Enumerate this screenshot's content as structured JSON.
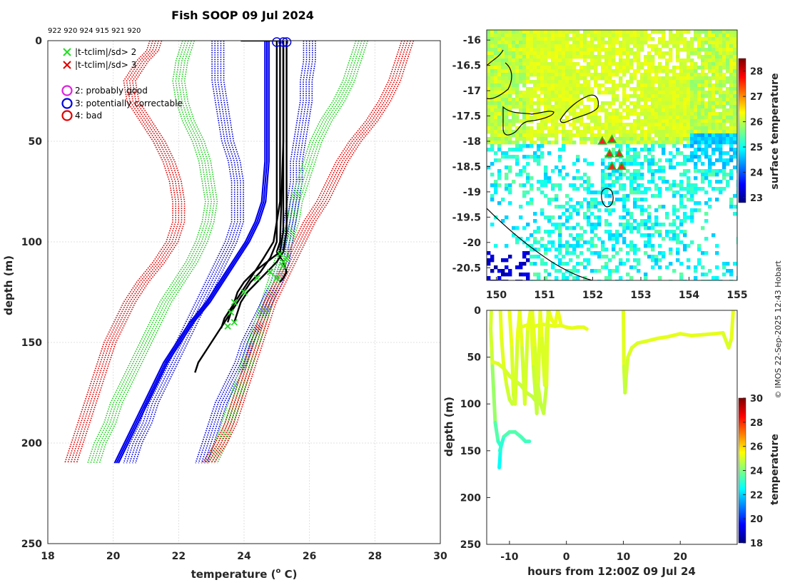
{
  "chart_data": [
    {
      "id": "profile",
      "type": "line",
      "title": "Fish SOOP 09 Jul 2024",
      "drop_ids_label": "922 920 924 915 921 920",
      "xlabel": "temperature (°C)",
      "xlabel_main": "temperature (",
      "xlabel_sup": "o",
      "xlabel_tail": " C)",
      "ylabel": "depth (m)",
      "xlim": [
        18,
        30
      ],
      "ylim": [
        250,
        0
      ],
      "xticks": [
        "18",
        "20",
        "22",
        "24",
        "26",
        "28",
        "30"
      ],
      "yticks": [
        "0",
        "50",
        "100",
        "150",
        "200",
        "250"
      ],
      "grid": true,
      "legend": [
        {
          "marker": "x",
          "color": "#22dd22",
          "label": "|t-tclim|/sd> 2"
        },
        {
          "marker": "x",
          "color": "#e00000",
          "label": "|t-tclim|/sd> 3"
        },
        {
          "marker": "o",
          "color": "#dd22dd",
          "label": "2: probably good"
        },
        {
          "marker": "o",
          "color": "#0000e0",
          "label": "3: potentially correctable"
        },
        {
          "marker": "o",
          "color": "#e00000",
          "label": "4: bad"
        }
      ],
      "clim_depth": [
        0,
        5,
        10,
        20,
        30,
        40,
        50,
        60,
        70,
        80,
        90,
        100,
        110,
        120,
        130,
        140,
        150,
        160,
        170,
        180,
        190,
        200,
        210
      ],
      "clim_series": [
        {
          "name": "clim-3sd-low",
          "color": "#e00000",
          "values": [
            21.3,
            21.2,
            20.9,
            20.5,
            20.6,
            21.0,
            21.4,
            21.7,
            21.9,
            22.0,
            22.0,
            21.8,
            21.4,
            20.9,
            20.5,
            20.2,
            19.9,
            19.7,
            19.5,
            19.3,
            19.1,
            18.9,
            18.7
          ]
        },
        {
          "name": "clim-2sd-low",
          "color": "#22cc22",
          "values": [
            22.3,
            22.2,
            22.1,
            22.0,
            22.1,
            22.3,
            22.6,
            22.8,
            22.9,
            23.0,
            22.9,
            22.7,
            22.4,
            22.0,
            21.6,
            21.3,
            21.0,
            20.7,
            20.4,
            20.1,
            19.9,
            19.6,
            19.4
          ]
        },
        {
          "name": "clim-1sd-low",
          "color": "#0000dd",
          "values": [
            23.2,
            23.2,
            23.2,
            23.2,
            23.3,
            23.4,
            23.5,
            23.7,
            23.8,
            23.8,
            23.8,
            23.6,
            23.3,
            23.0,
            22.7,
            22.4,
            22.1,
            21.8,
            21.5,
            21.2,
            21.0,
            20.7,
            20.5
          ]
        },
        {
          "name": "clim-1sd-high",
          "color": "#0000dd",
          "values": [
            26.0,
            26.0,
            26.0,
            25.9,
            25.9,
            25.8,
            25.7,
            25.6,
            25.6,
            25.5,
            25.4,
            25.3,
            25.2,
            25.0,
            24.7,
            24.4,
            24.1,
            23.9,
            23.6,
            23.3,
            23.1,
            22.9,
            22.7
          ]
        },
        {
          "name": "clim-2sd-high",
          "color": "#22cc22",
          "values": [
            27.6,
            27.5,
            27.4,
            27.2,
            26.9,
            26.5,
            26.2,
            26.0,
            25.8,
            25.6,
            25.5,
            25.3,
            25.1,
            24.9,
            24.7,
            24.5,
            24.3,
            24.1,
            23.9,
            23.7,
            23.5,
            23.3,
            23.0
          ]
        },
        {
          "name": "clim-3sd-high",
          "color": "#e00000",
          "values": [
            29.0,
            28.9,
            28.8,
            28.6,
            28.3,
            27.9,
            27.4,
            27.0,
            26.7,
            26.4,
            26.0,
            25.7,
            25.4,
            25.1,
            24.8,
            24.6,
            24.4,
            24.2,
            24.0,
            23.8,
            23.6,
            23.3,
            22.9
          ]
        }
      ],
      "mean_series": {
        "name": "clim-mean",
        "color": "#0000ee",
        "depth": [
          0,
          20,
          40,
          60,
          80,
          90,
          100,
          110,
          120,
          130,
          140,
          150,
          160,
          170,
          180,
          190,
          200,
          210
        ],
        "values": [
          24.7,
          24.7,
          24.7,
          24.7,
          24.6,
          24.4,
          24.1,
          23.7,
          23.3,
          22.9,
          22.4,
          22.0,
          21.6,
          21.3,
          21.0,
          20.7,
          20.4,
          20.1
        ]
      },
      "profiles": [
        {
          "name": "drop-1",
          "depth": [
            0,
            40,
            80,
            90,
            100,
            108,
            115,
            120,
            125,
            130,
            135,
            140,
            145,
            150,
            155,
            160,
            165
          ],
          "values": [
            25.1,
            25.1,
            25.1,
            25.0,
            25.0,
            24.8,
            24.5,
            24.2,
            24.0,
            23.8,
            23.6,
            23.4,
            23.2,
            23.0,
            22.8,
            22.6,
            22.5
          ]
        },
        {
          "name": "drop-2",
          "depth": [
            0,
            40,
            80,
            95,
            105,
            110,
            115,
            120,
            125,
            130,
            135,
            140
          ],
          "values": [
            25.2,
            25.2,
            25.2,
            25.2,
            25.1,
            24.7,
            24.3,
            24.0,
            23.8,
            23.7,
            23.6,
            23.5
          ]
        },
        {
          "name": "drop-3",
          "depth": [
            0,
            50,
            90,
            100,
            108,
            113,
            118,
            123,
            128,
            133,
            138,
            143
          ],
          "values": [
            25.0,
            25.0,
            25.0,
            24.9,
            24.6,
            24.4,
            24.2,
            24.0,
            23.8,
            23.6,
            23.4,
            23.3
          ]
        },
        {
          "name": "drop-4",
          "depth": [
            0,
            60,
            95,
            105,
            110,
            115,
            120,
            125,
            130,
            135,
            140
          ],
          "values": [
            25.3,
            25.3,
            25.3,
            25.2,
            25.0,
            24.7,
            24.4,
            24.1,
            23.9,
            23.8,
            23.7
          ]
        },
        {
          "name": "drop-5",
          "depth": [
            0,
            50,
            100,
            105,
            110,
            115,
            118,
            120
          ],
          "values": [
            25.2,
            25.2,
            25.1,
            25.0,
            25.2,
            25.3,
            25.2,
            25.1
          ]
        },
        {
          "name": "drop-6",
          "depth": [
            0,
            0,
            0
          ],
          "values": [
            23.9,
            24.6,
            25.1
          ]
        }
      ],
      "flag_points": {
        "green_x": [
          [
            25.1,
            106
          ],
          [
            25.3,
            108
          ],
          [
            25.2,
            112
          ],
          [
            24.8,
            115
          ],
          [
            24.4,
            118
          ],
          [
            24.0,
            125
          ],
          [
            23.7,
            130
          ],
          [
            23.6,
            135
          ],
          [
            23.7,
            140
          ],
          [
            23.5,
            142
          ],
          [
            25.2,
            110
          ],
          [
            25.0,
            118
          ]
        ],
        "blue_o": [
          [
            25.0,
            0
          ],
          [
            25.2,
            0
          ],
          [
            25.3,
            0
          ]
        ]
      }
    },
    {
      "id": "map",
      "type": "heatmap",
      "colorbar_label": "surface temperature",
      "xlim": [
        149.8,
        155
      ],
      "ylim": [
        -20.75,
        -15.8
      ],
      "xticks": [
        "150",
        "151",
        "152",
        "153",
        "154",
        "155"
      ],
      "yticks": [
        "-16",
        "-16.5",
        "-17",
        "-17.5",
        "-18",
        "-18.5",
        "-19",
        "-19.5",
        "-20",
        "-20.5"
      ],
      "crange": [
        22.8,
        28.5
      ],
      "cticks": [
        "23",
        "24",
        "25",
        "26",
        "27",
        "28"
      ],
      "drops": [
        [
          152.2,
          -18.0
        ],
        [
          152.4,
          -17.97
        ],
        [
          152.35,
          -18.25
        ],
        [
          152.55,
          -18.25
        ],
        [
          152.4,
          -18.5
        ],
        [
          152.6,
          -18.5
        ]
      ]
    },
    {
      "id": "timeseries",
      "type": "scatter",
      "xlabel": "hours from 12:00Z 09 Jul 24",
      "ylabel": "depth (m)",
      "colorbar_label": "temperature",
      "xlim": [
        -14,
        30
      ],
      "ylim": [
        250,
        0
      ],
      "xticks": [
        "-10",
        "0",
        "10",
        "20"
      ],
      "yticks": [
        "0",
        "50",
        "100",
        "150",
        "200",
        "250"
      ],
      "crange": [
        18,
        30
      ],
      "cticks": [
        "18",
        "20",
        "22",
        "24",
        "26",
        "28",
        "30"
      ],
      "tracks": [
        {
          "name": "track-1",
          "t": [
            -13.2,
            -13.3,
            -13.1,
            -13.0,
            -12.5,
            -12.0,
            -11.5,
            -11.6,
            -11.7,
            -11.8
          ],
          "depth": [
            0,
            20,
            45,
            60,
            120,
            140,
            145,
            150,
            160,
            168
          ],
          "temp": [
            25.0,
            25.0,
            24.9,
            24.8,
            23.8,
            23.2,
            23.0,
            22.8,
            22.6,
            22.5
          ]
        },
        {
          "name": "track-2",
          "t": [
            -11.7,
            -11.0,
            -10.0,
            -9.0,
            -8.0,
            -7.2,
            -6.5
          ],
          "depth": [
            150,
            135,
            130,
            130,
            135,
            140,
            140
          ],
          "temp": [
            22.7,
            23.3,
            23.5,
            23.5,
            23.4,
            23.3,
            23.2
          ]
        },
        {
          "name": "track-3",
          "t": [
            -13.0,
            -12.0,
            -11.0,
            -10.0,
            -9.0,
            -8.0,
            -7.0,
            -6.0,
            -5.5,
            -4.6
          ],
          "depth": [
            55,
            57,
            62,
            70,
            75,
            80,
            88,
            92,
            96,
            100
          ],
          "temp": [
            25.2,
            25.1,
            25.0,
            25.0,
            24.9,
            24.9,
            24.8,
            24.8,
            24.7,
            24.7
          ]
        },
        {
          "name": "track-4",
          "t": [
            -11.6,
            -11.4,
            -11.0,
            -10.5,
            -10.0,
            -9.5,
            -9.0,
            -8.5,
            -8.0,
            -7.5,
            -7.0,
            -6.5,
            -6.0,
            -5.5,
            -5.0,
            -4.5,
            -4.0,
            -3.0,
            -2.0,
            -1.0,
            0.0,
            1.0,
            2.0,
            3.0,
            3.6
          ],
          "depth": [
            0,
            30,
            60,
            80,
            95,
            100,
            95,
            20,
            18,
            17,
            16,
            15,
            16,
            17,
            16,
            16,
            15,
            16,
            17,
            16,
            18,
            19,
            18,
            18,
            20
          ],
          "temp": [
            25.2,
            25.2,
            25.1,
            25.0,
            24.9,
            24.8,
            24.9,
            25.2,
            25.2,
            25.2,
            25.2,
            25.2,
            25.2,
            25.2,
            25.2,
            25.2,
            25.2,
            25.2,
            25.2,
            25.2,
            25.2,
            25.2,
            25.2,
            25.2,
            25.2
          ]
        },
        {
          "name": "track-5",
          "t": [
            -10.0,
            -9.6,
            -9.3,
            -9.0,
            -8.6,
            -8.2,
            -7.8,
            -7.3,
            -6.8,
            -6.3,
            -5.8,
            -5.2,
            -4.9,
            -4.6,
            -4.3,
            -3.8,
            -3.5,
            -3.1,
            -2.6,
            -2.0,
            -1.5,
            -1.0
          ],
          "depth": [
            0,
            40,
            90,
            100,
            30,
            0,
            40,
            100,
            20,
            0,
            60,
            110,
            70,
            0,
            30,
            80,
            20,
            0,
            10,
            15,
            0,
            14
          ],
          "temp": [
            25.3,
            25.2,
            24.9,
            24.8,
            25.2,
            25.3,
            25.1,
            24.8,
            25.2,
            25.3,
            25.0,
            24.7,
            24.9,
            25.3,
            25.2,
            24.9,
            25.2,
            25.3,
            25.3,
            25.2,
            25.3,
            25.2
          ]
        },
        {
          "name": "track-6",
          "t": [
            -6.0,
            -5.5,
            -5.0,
            -4.5,
            -4.0,
            -3.5,
            -3.2
          ],
          "depth": [
            0,
            40,
            80,
            100,
            110,
            80,
            0
          ],
          "temp": [
            25.3,
            25.1,
            24.9,
            24.8,
            24.7,
            24.9,
            25.3
          ]
        },
        {
          "name": "track-7",
          "t": [
            10.0,
            10.1,
            10.3,
            10.5,
            10.8,
            11.5,
            12.5,
            14.0,
            16.0,
            18.0,
            20.0,
            22.0,
            24.0,
            26.0,
            27.5,
            28.5,
            29.0,
            29.3
          ],
          "depth": [
            0,
            60,
            88,
            70,
            50,
            40,
            35,
            33,
            30,
            28,
            25,
            27,
            26,
            25,
            24,
            40,
            30,
            0
          ],
          "temp": [
            25.3,
            25.0,
            24.7,
            24.9,
            25.0,
            25.1,
            25.1,
            25.1,
            25.2,
            25.2,
            25.2,
            25.2,
            25.2,
            25.2,
            25.2,
            25.0,
            25.1,
            25.3
          ]
        }
      ]
    }
  ],
  "credit": "© IMOS 22-Sep-2025 12:43 Hobart"
}
